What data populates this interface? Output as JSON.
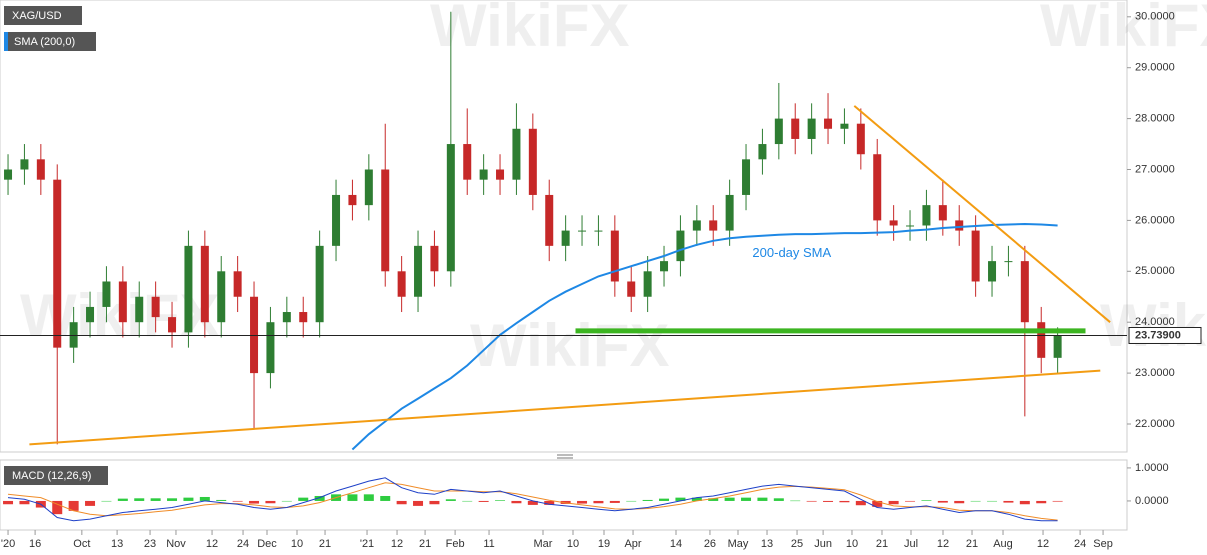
{
  "chart_data": [
    {
      "type": "candlestick",
      "title": "XAG/USD",
      "watermark": "WikiFX",
      "up_color": "#2e7d32",
      "down_color": "#c62828",
      "open": [
        26.8,
        27.0,
        27.2,
        26.8,
        23.5,
        24.0,
        24.3,
        24.8,
        24.0,
        24.5,
        24.1,
        23.8,
        25.5,
        24.0,
        25.0,
        24.5,
        23.0,
        24.0,
        24.2,
        24.0,
        25.5,
        26.5,
        26.3,
        27.0,
        25.0,
        24.5,
        25.5,
        25.0,
        27.5,
        26.8,
        27.0,
        26.8,
        27.8,
        26.5,
        25.5,
        25.8,
        25.8,
        25.8,
        24.8,
        24.5,
        25.0,
        25.2,
        25.8,
        26.0,
        25.8,
        26.5,
        27.2,
        27.5,
        28.0,
        27.6,
        28.0,
        27.8,
        27.9,
        27.3,
        26.0,
        25.9,
        25.9,
        26.3,
        26.0,
        25.8,
        24.8,
        25.2,
        25.2,
        24.0,
        23.3
      ],
      "high": [
        27.3,
        27.5,
        27.5,
        27.1,
        24.3,
        24.6,
        25.1,
        25.1,
        24.8,
        24.8,
        24.4,
        25.8,
        25.8,
        25.3,
        25.3,
        24.8,
        24.3,
        24.5,
        24.5,
        25.8,
        26.8,
        26.8,
        27.3,
        27.9,
        25.3,
        25.8,
        25.8,
        30.1,
        28.2,
        27.3,
        27.3,
        28.3,
        28.1,
        26.8,
        26.1,
        26.1,
        26.1,
        26.1,
        25.1,
        25.3,
        25.5,
        26.1,
        26.3,
        26.3,
        26.8,
        27.5,
        27.8,
        28.7,
        28.3,
        28.3,
        28.5,
        28.2,
        28.2,
        27.6,
        26.3,
        26.2,
        26.6,
        26.8,
        26.3,
        26.1,
        25.5,
        25.5,
        25.5,
        24.3,
        23.9
      ],
      "low": [
        26.5,
        26.7,
        26.5,
        21.6,
        23.2,
        23.7,
        24.0,
        23.7,
        23.7,
        23.8,
        23.5,
        23.5,
        23.7,
        23.7,
        24.2,
        21.9,
        22.7,
        23.7,
        23.7,
        23.7,
        25.2,
        26.0,
        26.0,
        24.7,
        24.2,
        24.2,
        24.7,
        24.7,
        26.5,
        26.5,
        26.5,
        26.5,
        26.2,
        25.2,
        25.2,
        25.5,
        25.5,
        24.5,
        24.2,
        24.2,
        24.7,
        24.9,
        25.5,
        25.5,
        25.5,
        26.2,
        26.9,
        27.2,
        27.3,
        27.3,
        27.5,
        27.5,
        27.0,
        25.7,
        25.6,
        25.6,
        25.6,
        25.7,
        25.5,
        24.5,
        24.5,
        24.9,
        22.15,
        23.0,
        23.0
      ],
      "close": [
        27.0,
        27.2,
        26.8,
        23.5,
        24.0,
        24.3,
        24.8,
        24.0,
        24.5,
        24.1,
        23.8,
        25.5,
        24.0,
        25.0,
        24.5,
        23.0,
        24.0,
        24.2,
        24.0,
        25.5,
        26.5,
        26.3,
        27.0,
        25.0,
        24.5,
        25.5,
        25.0,
        27.5,
        26.8,
        27.0,
        26.8,
        27.8,
        26.5,
        25.5,
        25.8,
        25.8,
        25.8,
        24.8,
        24.5,
        25.0,
        25.2,
        25.8,
        26.0,
        25.8,
        26.5,
        27.2,
        27.5,
        28.0,
        27.6,
        28.0,
        27.8,
        27.9,
        27.3,
        26.0,
        25.9,
        25.9,
        26.3,
        26.0,
        25.8,
        24.8,
        25.2,
        25.2,
        24.0,
        23.3,
        23.74
      ],
      "series": [
        {
          "name": "SMA (200,0)",
          "color": "#1e88e5",
          "values": [
            null,
            null,
            null,
            null,
            null,
            null,
            null,
            null,
            null,
            null,
            null,
            null,
            null,
            null,
            null,
            null,
            null,
            null,
            null,
            null,
            null,
            21.5,
            21.8,
            22.05,
            22.3,
            22.5,
            22.7,
            22.9,
            23.15,
            23.45,
            23.75,
            23.98,
            24.2,
            24.42,
            24.6,
            24.75,
            24.9,
            25.0,
            25.1,
            25.2,
            25.3,
            25.42,
            25.52,
            25.6,
            25.65,
            25.68,
            25.7,
            25.72,
            25.73,
            25.73,
            25.74,
            25.75,
            25.75,
            25.76,
            25.77,
            25.8,
            25.82,
            25.85,
            25.87,
            25.89,
            25.91,
            25.92,
            25.93,
            25.92,
            25.9
          ]
        }
      ],
      "annotation": "200-day SMA",
      "trendlines": [
        {
          "x": [
            51.6,
            67.2
          ],
          "values": [
            28.25,
            24.0
          ],
          "color": "#f39c12"
        },
        {
          "x": [
            1.3,
            66.6
          ],
          "values": [
            21.6,
            23.05
          ],
          "color": "#f39c12"
        },
        {
          "x": [
            34.6,
            65.7
          ],
          "values": [
            23.83,
            23.83
          ],
          "color": "#3cb521"
        }
      ],
      "last_price": {
        "value": 23.739,
        "label": "23.73900"
      },
      "xlim": [
        -0.49,
        68.23
      ],
      "ylim": [
        21.45,
        30.33
      ],
      "yticks": [
        {
          "value": 22,
          "label": "22.0000"
        },
        {
          "value": 23,
          "label": "23.0000"
        },
        {
          "value": 24,
          "label": "24.0000"
        },
        {
          "value": 25,
          "label": "25.0000"
        },
        {
          "value": 26,
          "label": "26.0000"
        },
        {
          "value": 27,
          "label": "27.0000"
        },
        {
          "value": 28,
          "label": "28.0000"
        },
        {
          "value": 29,
          "label": "29.0000"
        },
        {
          "value": 30,
          "label": "30.0000"
        }
      ],
      "xticks": [
        {
          "value": 0,
          "label": "'20"
        },
        {
          "value": 1.65,
          "label": "16"
        },
        {
          "value": 4.5,
          "label": "Oct"
        },
        {
          "value": 6.65,
          "label": "13"
        },
        {
          "value": 8.66,
          "label": "23"
        },
        {
          "value": 10.24,
          "label": "Nov"
        },
        {
          "value": 12.44,
          "label": "12"
        },
        {
          "value": 14.33,
          "label": "24"
        },
        {
          "value": 15.79,
          "label": "Dec"
        },
        {
          "value": 17.62,
          "label": "10"
        },
        {
          "value": 19.33,
          "label": "21"
        },
        {
          "value": 21.89,
          "label": "'21"
        },
        {
          "value": 23.72,
          "label": "12"
        },
        {
          "value": 25.43,
          "label": "21"
        },
        {
          "value": 27.26,
          "label": "Feb"
        },
        {
          "value": 29.33,
          "label": "11"
        },
        {
          "value": 32.62,
          "label": "Mar"
        },
        {
          "value": 34.45,
          "label": "10"
        },
        {
          "value": 36.34,
          "label": "19"
        },
        {
          "value": 38.11,
          "label": "Apr"
        },
        {
          "value": 40.73,
          "label": "14"
        },
        {
          "value": 42.8,
          "label": "26"
        },
        {
          "value": 44.51,
          "label": "May"
        },
        {
          "value": 46.28,
          "label": "13"
        },
        {
          "value": 48.11,
          "label": "25"
        },
        {
          "value": 49.7,
          "label": "Jun"
        },
        {
          "value": 51.46,
          "label": "10"
        },
        {
          "value": 53.29,
          "label": "21"
        },
        {
          "value": 55.06,
          "label": "Jul"
        },
        {
          "value": 57.01,
          "label": "12"
        },
        {
          "value": 58.78,
          "label": "21"
        },
        {
          "value": 60.67,
          "label": "Aug"
        },
        {
          "value": 63.11,
          "label": "12"
        },
        {
          "value": 65.37,
          "label": "24"
        },
        {
          "value": 66.77,
          "label": "Sep"
        }
      ]
    },
    {
      "type": "macd",
      "title": "MACD (12,26,9)",
      "histogram": [
        -0.1,
        -0.1,
        -0.2,
        -0.4,
        -0.3,
        -0.15,
        0,
        0.07,
        0.08,
        0.08,
        0.08,
        0.1,
        0.12,
        0.03,
        -0.02,
        -0.08,
        -0.07,
        0,
        0.1,
        0.15,
        0.2,
        0.2,
        0.2,
        0.15,
        -0.1,
        -0.15,
        -0.1,
        0.05,
        0,
        -0.03,
        0.02,
        -0.07,
        -0.12,
        -0.12,
        -0.09,
        -0.08,
        -0.07,
        -0.06,
        0,
        0.03,
        0.07,
        0.1,
        0.1,
        0.08,
        0.1,
        0.1,
        0.1,
        0.08,
        0.01,
        -0.02,
        -0.03,
        -0.04,
        -0.13,
        -0.18,
        -0.1,
        -0.02,
        0.02,
        -0.05,
        -0.07,
        0,
        0,
        -0.05,
        -0.1,
        -0.07,
        -0.02
      ],
      "up_color": "#2ecc40",
      "down_color": "#e53935",
      "macd": [
        0.1,
        0.05,
        -0.1,
        -0.5,
        -0.6,
        -0.55,
        -0.45,
        -0.35,
        -0.3,
        -0.25,
        -0.2,
        -0.1,
        0.0,
        -0.05,
        -0.1,
        -0.2,
        -0.25,
        -0.2,
        -0.05,
        0.1,
        0.3,
        0.45,
        0.6,
        0.7,
        0.4,
        0.25,
        0.2,
        0.35,
        0.3,
        0.25,
        0.3,
        0.15,
        0.0,
        -0.1,
        -0.15,
        -0.2,
        -0.25,
        -0.3,
        -0.25,
        -0.2,
        -0.1,
        0.0,
        0.1,
        0.15,
        0.25,
        0.35,
        0.45,
        0.5,
        0.45,
        0.4,
        0.35,
        0.3,
        0.05,
        -0.2,
        -0.25,
        -0.2,
        -0.15,
        -0.25,
        -0.35,
        -0.3,
        -0.3,
        -0.4,
        -0.55,
        -0.6,
        -0.6
      ],
      "macd_color": "#1e40c8",
      "signal": [
        0.2,
        0.15,
        0.1,
        -0.1,
        -0.3,
        -0.4,
        -0.45,
        -0.42,
        -0.38,
        -0.33,
        -0.28,
        -0.2,
        -0.12,
        -0.08,
        -0.08,
        -0.12,
        -0.18,
        -0.2,
        -0.15,
        -0.05,
        0.1,
        0.25,
        0.4,
        0.55,
        0.5,
        0.4,
        0.3,
        0.3,
        0.3,
        0.28,
        0.28,
        0.22,
        0.12,
        0.02,
        -0.06,
        -0.12,
        -0.18,
        -0.24,
        -0.25,
        -0.23,
        -0.17,
        -0.1,
        0.0,
        0.07,
        0.15,
        0.25,
        0.35,
        0.42,
        0.44,
        0.42,
        0.38,
        0.34,
        0.18,
        -0.02,
        -0.15,
        -0.18,
        -0.17,
        -0.2,
        -0.28,
        -0.3,
        -0.3,
        -0.35,
        -0.45,
        -0.53,
        -0.58
      ],
      "signal_color": "#f08c28",
      "ylim": [
        -0.88,
        1.24
      ],
      "yticks": [
        {
          "value": 1,
          "label": "1.0000"
        },
        {
          "value": 0,
          "label": "0.0000"
        }
      ]
    }
  ]
}
